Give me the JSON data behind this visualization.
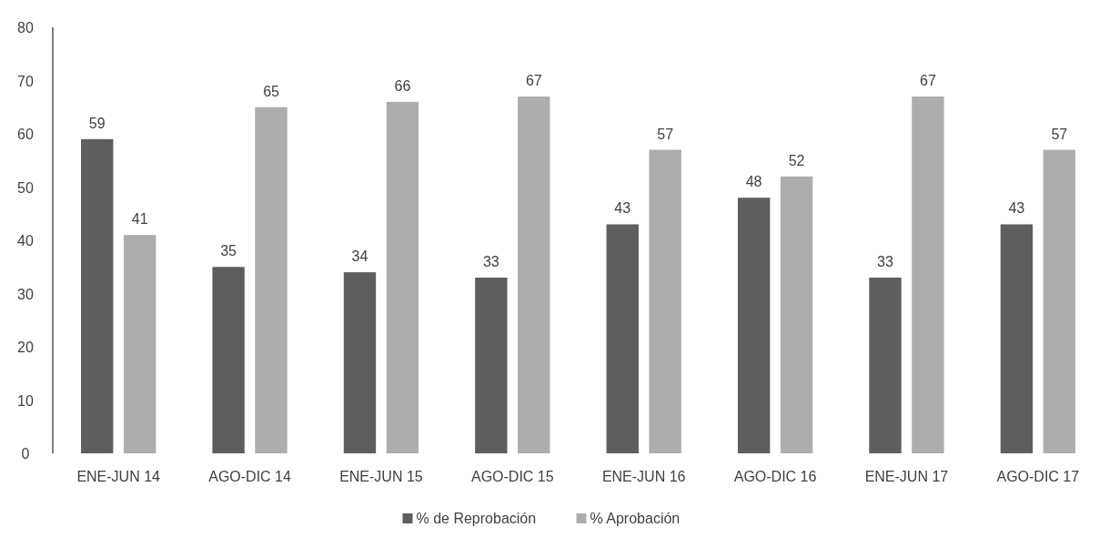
{
  "chart_data": {
    "type": "bar",
    "categories": [
      "ENE-JUN 14",
      "AGO-DIC 14",
      "ENE-JUN 15",
      "AGO-DIC 15",
      "ENE-JUN 16",
      "AGO-DIC 16",
      "ENE-JUN 17",
      "AGO-DIC 17"
    ],
    "series": [
      {
        "name": "% de Reprobación",
        "color": "#5e5e5e",
        "values": [
          59,
          35,
          34,
          33,
          43,
          48,
          33,
          43
        ]
      },
      {
        "name": "% Aprobación",
        "color": "#adadad",
        "values": [
          41,
          65,
          66,
          67,
          57,
          52,
          67,
          57
        ]
      }
    ],
    "ylim": [
      0,
      80
    ],
    "yticks": [
      0,
      10,
      20,
      30,
      40,
      50,
      60,
      70,
      80
    ],
    "data_labels": true,
    "grid": false,
    "legend": "bottom"
  }
}
